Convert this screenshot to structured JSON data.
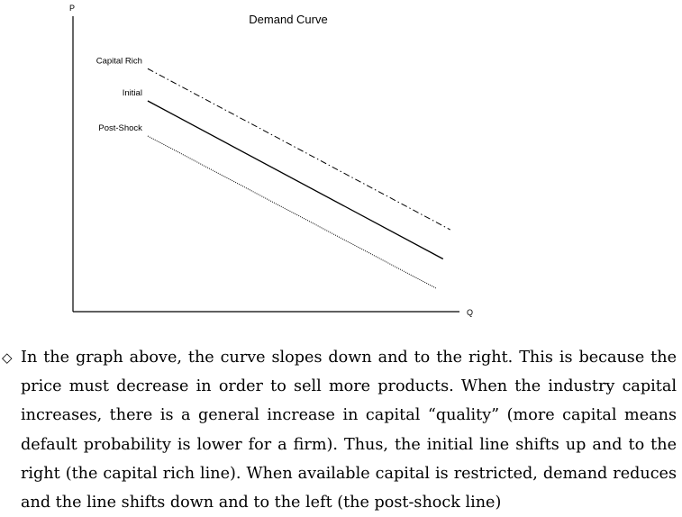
{
  "chart_data": {
    "type": "line",
    "title": "Demand Curve",
    "xlabel": "Q",
    "ylabel": "P",
    "xlim": [
      0,
      10
    ],
    "ylim": [
      0,
      10
    ],
    "grid": false,
    "series": [
      {
        "name": "Capital Rich",
        "style": "dash-dot",
        "x": [
          2.1,
          10.6
        ],
        "y": [
          8.3,
          2.8
        ]
      },
      {
        "name": "Initial",
        "style": "solid",
        "x": [
          2.1,
          10.4
        ],
        "y": [
          7.2,
          1.8
        ]
      },
      {
        "name": "Post-Shock",
        "style": "dotted",
        "x": [
          2.1,
          10.2
        ],
        "y": [
          6.0,
          0.8
        ]
      }
    ]
  },
  "caption": {
    "bullet": "◇",
    "text": "In the graph above, the curve slopes down and to the right. This is because the price must decrease in order to sell more products. When the industry capital increases, there is a general increase in capital “quality” (more capital means default probability is lower for a firm). Thus, the initial line shifts up and to the right (the capital rich line). When available capital is restricted, demand reduces and the line shifts down and to the left (the post-shock line)"
  }
}
